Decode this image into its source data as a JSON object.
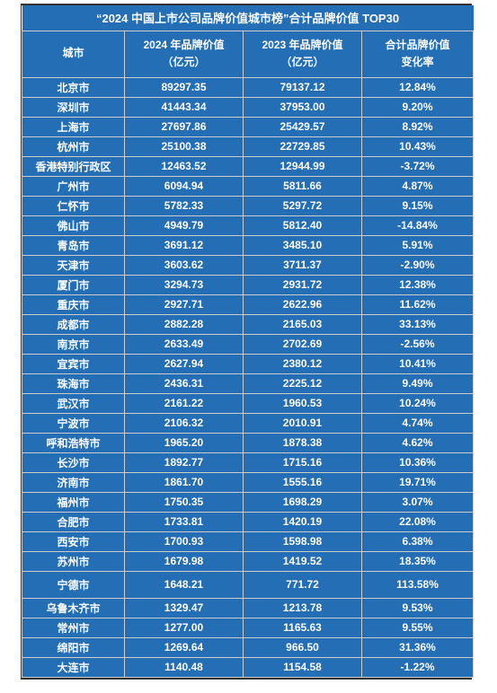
{
  "table": {
    "title": "“2024 中国上市公司品牌价值城市榜”合计品牌价值 TOP30",
    "header_bg": "#236eb4",
    "body_bg": "#236eb4",
    "text_color": "#ffffff",
    "columns": [
      {
        "label_l1": "城市",
        "label_l2": ""
      },
      {
        "label_l1": "2024 年品牌价值",
        "label_l2": "（亿元）"
      },
      {
        "label_l1": "2023 年品牌价值",
        "label_l2": "（亿元）"
      },
      {
        "label_l1": "合计品牌价值",
        "label_l2": "变化率"
      }
    ],
    "rows": [
      [
        "北京市",
        "89297.35",
        "79137.12",
        "12.84%"
      ],
      [
        "深圳市",
        "41443.34",
        "37953.00",
        "9.20%"
      ],
      [
        "上海市",
        "27697.86",
        "25429.57",
        "8.92%"
      ],
      [
        "杭州市",
        "25100.38",
        "22729.85",
        "10.43%"
      ],
      [
        "香港特别行政区",
        "12463.52",
        "12944.99",
        "-3.72%"
      ],
      [
        "广州市",
        "6094.94",
        "5811.66",
        "4.87%"
      ],
      [
        "仁怀市",
        "5782.33",
        "5297.72",
        "9.15%"
      ],
      [
        "佛山市",
        "4949.79",
        "5812.40",
        "-14.84%"
      ],
      [
        "青岛市",
        "3691.12",
        "3485.10",
        "5.91%"
      ],
      [
        "天津市",
        "3603.62",
        "3711.37",
        "-2.90%"
      ],
      [
        "厦门市",
        "3294.73",
        "2931.72",
        "12.38%"
      ],
      [
        "重庆市",
        "2927.71",
        "2622.96",
        "11.62%"
      ],
      [
        "成都市",
        "2882.28",
        "2165.03",
        "33.13%"
      ],
      [
        "南京市",
        "2633.49",
        "2702.69",
        "-2.56%"
      ],
      [
        "宜宾市",
        "2627.94",
        "2380.12",
        "10.41%"
      ],
      [
        "珠海市",
        "2436.31",
        "2225.12",
        "9.49%"
      ],
      [
        "武汉市",
        "2161.22",
        "1960.53",
        "10.24%"
      ],
      [
        "宁波市",
        "2106.32",
        "2010.91",
        "4.74%"
      ],
      [
        "呼和浩特市",
        "1965.20",
        "1878.38",
        "4.62%"
      ],
      [
        "长沙市",
        "1892.77",
        "1715.16",
        "10.36%"
      ],
      [
        "济南市",
        "1861.70",
        "1555.16",
        "19.71%"
      ],
      [
        "福州市",
        "1750.35",
        "1698.29",
        "3.07%"
      ],
      [
        "合肥市",
        "1733.81",
        "1420.19",
        "22.08%"
      ],
      [
        "西安市",
        "1700.93",
        "1598.98",
        "6.38%"
      ],
      [
        "苏州市",
        "1679.98",
        "1419.52",
        "18.35%"
      ],
      [
        "宁德市",
        "1648.21",
        "771.72",
        "113.58%"
      ],
      [
        "乌鲁木齐市",
        "1329.47",
        "1213.78",
        "9.53%"
      ],
      [
        "常州市",
        "1277.00",
        "1165.63",
        "9.55%"
      ],
      [
        "绵阳市",
        "1269.64",
        "966.50",
        "31.36%"
      ],
      [
        "大连市",
        "1140.48",
        "1154.58",
        "-1.22%"
      ]
    ],
    "tall_rows": [
      25
    ]
  }
}
